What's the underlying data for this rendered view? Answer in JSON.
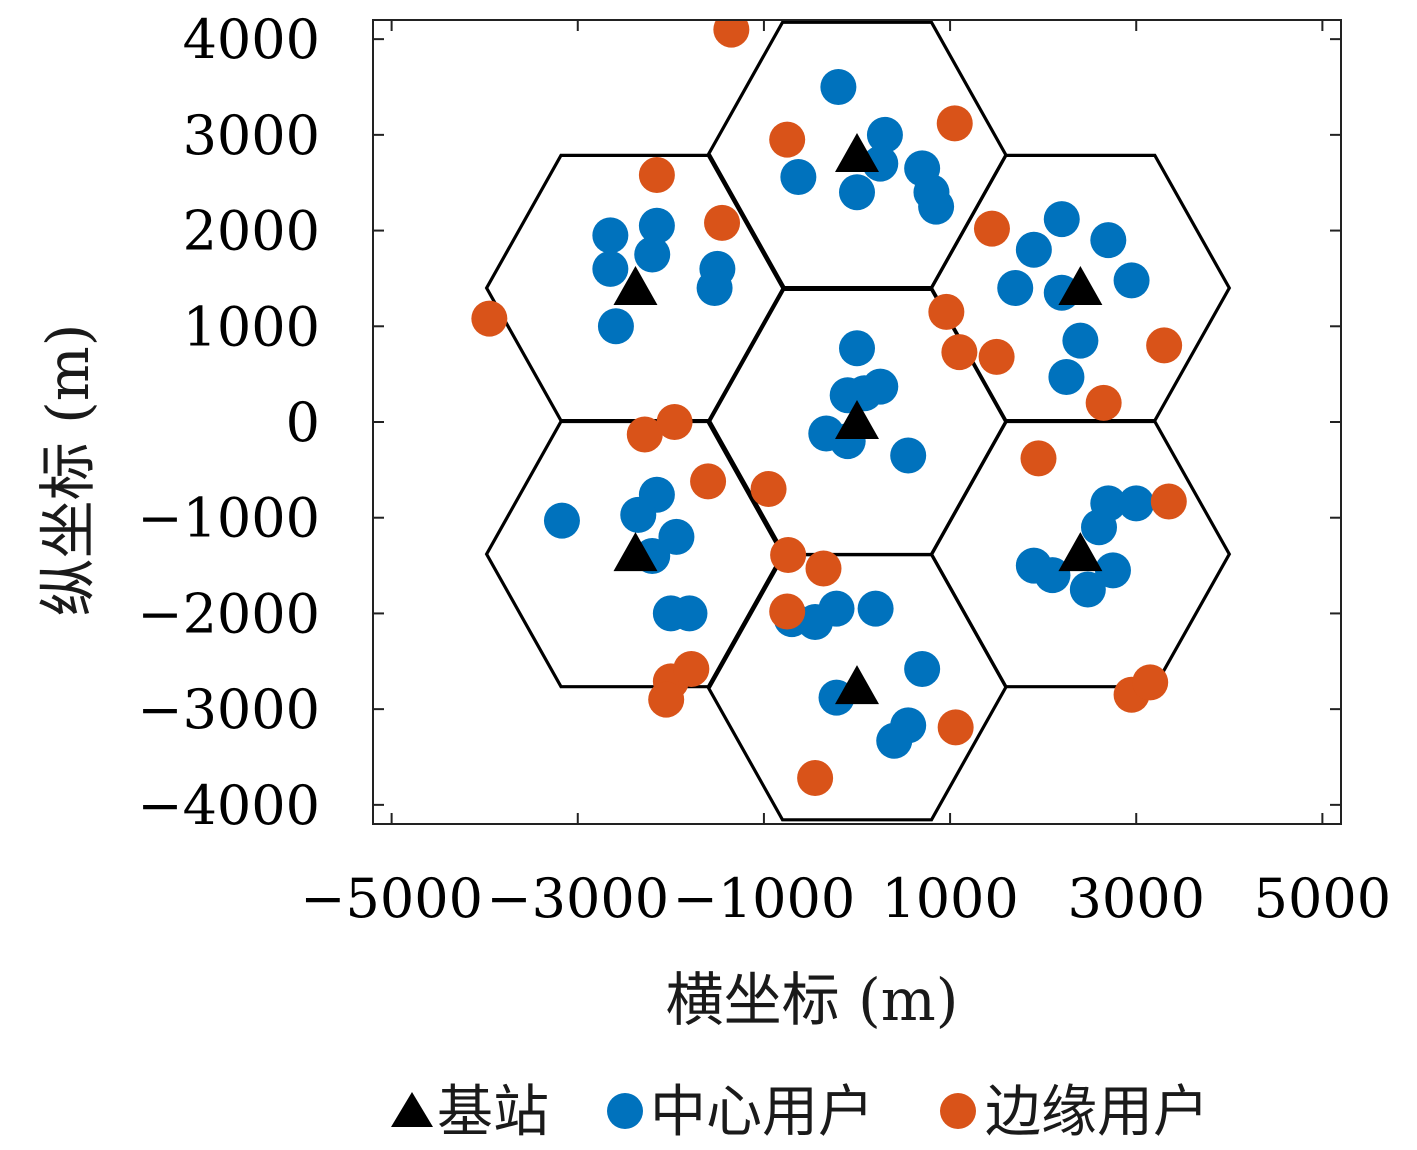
{
  "chart_data": {
    "type": "scatter",
    "xlabel": "横坐标 (m)",
    "ylabel": "纵坐标 (m)",
    "xlim": [
      -5200,
      5200
    ],
    "ylim": [
      -4200,
      4200
    ],
    "xticks": [
      -5000,
      -3000,
      -1000,
      1000,
      3000,
      5000
    ],
    "yticks": [
      4000,
      3000,
      2000,
      1000,
      0,
      -1000,
      -2000,
      -3000,
      -4000
    ],
    "xtick_labels": [
      "−5000",
      "−3000",
      "−1000",
      "1000",
      "3000",
      "5000"
    ],
    "ytick_labels": [
      "4000",
      "3000",
      "2000",
      "1000",
      "0",
      "−1000",
      "−2000",
      "−3000",
      "−4000"
    ],
    "grid": false,
    "legend_position": "bottom",
    "cell_radius": 1600,
    "colors": {
      "base_station": "#000000",
      "center_user": "#0072BD",
      "edge_user": "#D95319",
      "hexagon": "#000000"
    },
    "series": [
      {
        "name": "基站",
        "marker": "triangle",
        "points": [
          [
            0,
            2790
          ],
          [
            -2380,
            1400
          ],
          [
            2400,
            1400
          ],
          [
            0,
            0
          ],
          [
            -2380,
            -1380
          ],
          [
            2400,
            -1380
          ],
          [
            0,
            -2770
          ]
        ]
      },
      {
        "name": "中心用户",
        "marker": "circle",
        "points": [
          [
            -200,
            3500
          ],
          [
            300,
            3000
          ],
          [
            250,
            2700
          ],
          [
            0,
            2400
          ],
          [
            -630,
            2560
          ],
          [
            700,
            2650
          ],
          [
            800,
            2400
          ],
          [
            850,
            2250
          ],
          [
            -2650,
            1950
          ],
          [
            -2150,
            2050
          ],
          [
            -2200,
            1750
          ],
          [
            -2650,
            1600
          ],
          [
            -1500,
            1600
          ],
          [
            -1530,
            1400
          ],
          [
            -2590,
            1000
          ],
          [
            2200,
            2120
          ],
          [
            1900,
            1800
          ],
          [
            2700,
            1900
          ],
          [
            2950,
            1480
          ],
          [
            1700,
            1400
          ],
          [
            2200,
            1350
          ],
          [
            2400,
            850
          ],
          [
            2250,
            470
          ],
          [
            0,
            770
          ],
          [
            250,
            370
          ],
          [
            -100,
            280
          ],
          [
            80,
            300
          ],
          [
            -330,
            -120
          ],
          [
            -100,
            -200
          ],
          [
            550,
            -350
          ],
          [
            -2150,
            -760
          ],
          [
            -2350,
            -970
          ],
          [
            -3170,
            -1030
          ],
          [
            -1940,
            -1200
          ],
          [
            -2200,
            -1400
          ],
          [
            -2000,
            -2000
          ],
          [
            -1800,
            -2000
          ],
          [
            2700,
            -850
          ],
          [
            3000,
            -850
          ],
          [
            2600,
            -1100
          ],
          [
            1900,
            -1500
          ],
          [
            2100,
            -1600
          ],
          [
            2750,
            -1550
          ],
          [
            2480,
            -1750
          ],
          [
            -700,
            -2060
          ],
          [
            -450,
            -2090
          ],
          [
            -220,
            -1950
          ],
          [
            200,
            -1950
          ],
          [
            700,
            -2580
          ],
          [
            -220,
            -2880
          ],
          [
            550,
            -3170
          ],
          [
            400,
            -3330
          ]
        ]
      },
      {
        "name": "边缘用户",
        "marker": "circle",
        "points": [
          [
            -1350,
            4100
          ],
          [
            -750,
            2950
          ],
          [
            1050,
            3120
          ],
          [
            -2150,
            2580
          ],
          [
            -1450,
            2080
          ],
          [
            -3950,
            1080
          ],
          [
            1450,
            2020
          ],
          [
            960,
            1150
          ],
          [
            1100,
            730
          ],
          [
            1500,
            680
          ],
          [
            3300,
            800
          ],
          [
            2650,
            200
          ],
          [
            -2280,
            -130
          ],
          [
            -1960,
            0
          ],
          [
            -1600,
            -620
          ],
          [
            -950,
            -700
          ],
          [
            1950,
            -380
          ],
          [
            3350,
            -830
          ],
          [
            -740,
            -1390
          ],
          [
            -360,
            -1530
          ],
          [
            -750,
            -1980
          ],
          [
            -2000,
            -2710
          ],
          [
            -1780,
            -2580
          ],
          [
            -2050,
            -2900
          ],
          [
            2950,
            -2850
          ],
          [
            3150,
            -2720
          ],
          [
            1060,
            -3190
          ],
          [
            -450,
            -3720
          ]
        ]
      }
    ]
  }
}
